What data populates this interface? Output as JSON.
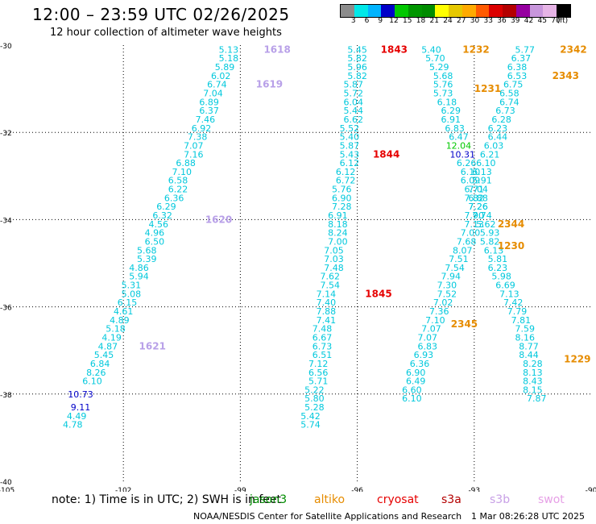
{
  "title": "12:00 – 23:59 UTC 02/26/2025",
  "subtitle": "12 hour collection of altimeter wave heights",
  "scale": {
    "colors": [
      "#8c8c8c",
      "#00e8e8",
      "#00b4ff",
      "#0000c8",
      "#00c800",
      "#009600",
      "#008c00",
      "#ffff00",
      "#e6c800",
      "#ffaa00",
      "#ff5a00",
      "#dc0000",
      "#b40000",
      "#9600a0",
      "#c896dc",
      "#e6b4e6",
      "#000000"
    ],
    "labels": [
      "3",
      "6",
      "9",
      "12",
      "15",
      "18",
      "21",
      "24",
      "27",
      "30",
      "33",
      "36",
      "39",
      "42",
      "45",
      "70",
      "(ft)"
    ]
  },
  "axes": {
    "y_labels": [
      "-30",
      "-32",
      "-34",
      "-36",
      "-38",
      "-40"
    ],
    "x_labels": [
      "-105",
      "-102",
      "-99",
      "-96",
      "-93",
      "-90"
    ]
  },
  "chart_data": {
    "type": "scatter",
    "title": "12:00 – 23:59 UTC 02/26/2025",
    "subtitle": "12 hour collection of altimeter wave heights",
    "xlabel": "",
    "ylabel": "",
    "xlim": [
      -105,
      -90
    ],
    "ylim": [
      -40,
      -30
    ],
    "tracks": [
      {
        "name": "track-a",
        "color": "#00c8dc",
        "points": [
          [
            -99.3,
            -30.1,
            "5.13"
          ],
          [
            -99.3,
            -30.3,
            "5.18"
          ],
          [
            -99.4,
            -30.5,
            "5.89"
          ],
          [
            -99.5,
            -30.7,
            "6.02"
          ],
          [
            -99.6,
            -30.9,
            "6.74"
          ],
          [
            -99.7,
            -31.1,
            "7.04"
          ],
          [
            -99.8,
            -31.3,
            "6.89"
          ],
          [
            -99.8,
            -31.5,
            "6.37"
          ],
          [
            -99.9,
            -31.7,
            "7.46"
          ],
          [
            -100.0,
            -31.9,
            "6.92"
          ],
          [
            -100.1,
            -32.1,
            "7.38"
          ],
          [
            -100.2,
            -32.3,
            "7.07"
          ],
          [
            -100.2,
            -32.5,
            "7.16"
          ],
          [
            -100.4,
            -32.7,
            "6.88"
          ],
          [
            -100.5,
            -32.9,
            "7.10"
          ],
          [
            -100.6,
            -33.1,
            "6.58"
          ],
          [
            -100.6,
            -33.3,
            "6.22"
          ],
          [
            -100.7,
            -33.5,
            "6.36"
          ],
          [
            -100.9,
            -33.7,
            "6.29"
          ],
          [
            -101.0,
            -33.9,
            "6.32"
          ],
          [
            -101.1,
            -34.1,
            "4.56"
          ],
          [
            -101.2,
            -34.3,
            "4.96"
          ],
          [
            -101.2,
            -34.5,
            "6.50"
          ],
          [
            -101.4,
            -34.7,
            "5.68"
          ],
          [
            -101.4,
            -34.9,
            "5.39"
          ],
          [
            -101.6,
            -35.1,
            "4.86"
          ],
          [
            -101.6,
            -35.3,
            "5.94"
          ],
          [
            -101.8,
            -35.5,
            "5.31"
          ],
          [
            -101.8,
            -35.7,
            "5.08"
          ],
          [
            -101.9,
            -35.9,
            "6.15"
          ],
          [
            -102.0,
            -36.1,
            "4.61"
          ],
          [
            -102.1,
            -36.3,
            "4.89"
          ],
          [
            -102.2,
            -36.5,
            "5.18"
          ],
          [
            -102.3,
            -36.7,
            "4.19"
          ],
          [
            -102.4,
            -36.9,
            "4.87"
          ],
          [
            -102.5,
            -37.1,
            "5.45"
          ],
          [
            -102.6,
            -37.3,
            "6.84"
          ],
          [
            -102.7,
            -37.5,
            "8.26"
          ],
          [
            -102.8,
            -37.7,
            "6.10"
          ],
          [
            -103.1,
            -38.0,
            "10.73"
          ],
          [
            -103.1,
            -38.3,
            "9.11"
          ],
          [
            -103.2,
            -38.5,
            "4.49"
          ],
          [
            -103.3,
            -38.7,
            "4.78"
          ]
        ]
      },
      {
        "name": "track-b",
        "color": "#00c8dc",
        "points": [
          [
            -96.0,
            -30.1,
            "5.45"
          ],
          [
            -96.0,
            -30.3,
            "5.82"
          ],
          [
            -96.0,
            -30.5,
            "5.96"
          ],
          [
            -96.0,
            -30.7,
            "5.82"
          ],
          [
            -96.1,
            -30.9,
            "5.87"
          ],
          [
            -96.1,
            -31.1,
            "5.72"
          ],
          [
            -96.1,
            -31.3,
            "6.04"
          ],
          [
            -96.1,
            -31.5,
            "5.44"
          ],
          [
            -96.1,
            -31.7,
            "6.62"
          ],
          [
            -96.2,
            -31.9,
            "5.52"
          ],
          [
            -96.2,
            -32.1,
            "5.40"
          ],
          [
            -96.2,
            -32.3,
            "5.87"
          ],
          [
            -96.2,
            -32.5,
            "5.43"
          ],
          [
            -96.2,
            -32.7,
            "6.12"
          ],
          [
            -96.3,
            -32.9,
            "6.12"
          ],
          [
            -96.3,
            -33.1,
            "6.72"
          ],
          [
            -96.4,
            -33.3,
            "5.76"
          ],
          [
            -96.4,
            -33.5,
            "6.90"
          ],
          [
            -96.4,
            -33.7,
            "7.28"
          ],
          [
            -96.5,
            -33.9,
            "6.91"
          ],
          [
            -96.5,
            -34.1,
            "8.18"
          ],
          [
            -96.5,
            -34.3,
            "8.24"
          ],
          [
            -96.5,
            -34.5,
            "7.00"
          ],
          [
            -96.6,
            -34.7,
            "7.05"
          ],
          [
            -96.6,
            -34.9,
            "7.03"
          ],
          [
            -96.6,
            -35.1,
            "7.48"
          ],
          [
            -96.7,
            -35.3,
            "7.62"
          ],
          [
            -96.7,
            -35.5,
            "7.54"
          ],
          [
            -96.8,
            -35.7,
            "7.14"
          ],
          [
            -96.8,
            -35.9,
            "7.40"
          ],
          [
            -96.8,
            -36.1,
            "7.88"
          ],
          [
            -96.8,
            -36.3,
            "7.41"
          ],
          [
            -96.9,
            -36.5,
            "7.48"
          ],
          [
            -96.9,
            -36.7,
            "6.67"
          ],
          [
            -96.9,
            -36.9,
            "6.73"
          ],
          [
            -96.9,
            -37.1,
            "6.51"
          ],
          [
            -97.0,
            -37.3,
            "7.12"
          ],
          [
            -97.0,
            -37.5,
            "6.56"
          ],
          [
            -97.0,
            -37.7,
            "5.71"
          ],
          [
            -97.1,
            -37.9,
            "5.22"
          ],
          [
            -97.1,
            -38.1,
            "5.80"
          ],
          [
            -97.1,
            -38.3,
            "5.28"
          ],
          [
            -97.2,
            -38.5,
            "5.42"
          ],
          [
            -97.2,
            -38.7,
            "5.74"
          ]
        ]
      },
      {
        "name": "track-c",
        "color": "#00c8dc",
        "points": [
          [
            -94.1,
            -30.1,
            "5.40"
          ],
          [
            -94.0,
            -30.3,
            "5.70"
          ],
          [
            -93.9,
            -30.5,
            "5.29"
          ],
          [
            -93.8,
            -30.7,
            "5.68"
          ],
          [
            -93.8,
            -30.9,
            "5.76"
          ],
          [
            -93.8,
            -31.1,
            "5.73"
          ],
          [
            -93.7,
            -31.3,
            "6.18"
          ],
          [
            -93.6,
            -31.5,
            "6.29"
          ],
          [
            -93.6,
            -31.7,
            "6.91"
          ],
          [
            -93.5,
            -31.9,
            "6.83"
          ],
          [
            -93.4,
            -32.1,
            "6.47"
          ],
          [
            -93.4,
            -32.3,
            "12.04"
          ],
          [
            -93.3,
            -32.5,
            "10.31"
          ],
          [
            -93.2,
            -32.7,
            "6.26"
          ],
          [
            -93.1,
            -32.9,
            "6.10"
          ],
          [
            -93.1,
            -33.1,
            "6.09"
          ],
          [
            -93.0,
            -33.3,
            "6.71"
          ],
          [
            -92.9,
            -33.5,
            "6.88"
          ],
          [
            -92.9,
            -33.7,
            "7.26"
          ],
          [
            -93.0,
            -33.9,
            "7.90"
          ],
          [
            -93.0,
            -34.1,
            "7.13"
          ],
          [
            -93.1,
            -34.3,
            "7.00"
          ],
          [
            -93.2,
            -34.5,
            "7.68"
          ],
          [
            -93.3,
            -34.7,
            "8.07"
          ],
          [
            -93.4,
            -34.9,
            "7.51"
          ],
          [
            -93.5,
            -35.1,
            "7.54"
          ],
          [
            -93.6,
            -35.3,
            "7.94"
          ],
          [
            -93.7,
            -35.5,
            "7.30"
          ],
          [
            -93.7,
            -35.7,
            "7.52"
          ],
          [
            -93.8,
            -35.9,
            "7.02"
          ],
          [
            -93.9,
            -36.1,
            "7.36"
          ],
          [
            -94.0,
            -36.3,
            "7.10"
          ],
          [
            -94.1,
            -36.5,
            "7.07"
          ],
          [
            -94.2,
            -36.7,
            "7.07"
          ],
          [
            -94.2,
            -36.9,
            "6.83"
          ],
          [
            -94.3,
            -37.1,
            "6.93"
          ],
          [
            -94.4,
            -37.3,
            "6.36"
          ],
          [
            -94.5,
            -37.5,
            "6.90"
          ],
          [
            -94.5,
            -37.7,
            "6.49"
          ],
          [
            -94.6,
            -37.9,
            "6.60"
          ],
          [
            -94.6,
            -38.1,
            "6.10"
          ]
        ]
      },
      {
        "name": "track-d",
        "color": "#00c8dc",
        "points": [
          [
            -91.7,
            -30.1,
            "5.77"
          ],
          [
            -91.8,
            -30.3,
            "6.37"
          ],
          [
            -91.9,
            -30.5,
            "6.38"
          ],
          [
            -91.9,
            -30.7,
            "6.53"
          ],
          [
            -92.0,
            -30.9,
            "6.75"
          ],
          [
            -92.1,
            -31.1,
            "6.58"
          ],
          [
            -92.1,
            -31.3,
            "6.74"
          ],
          [
            -92.2,
            -31.5,
            "6.73"
          ],
          [
            -92.3,
            -31.7,
            "6.28"
          ],
          [
            -92.4,
            -31.9,
            "6.23"
          ],
          [
            -92.4,
            -32.1,
            "6.44"
          ],
          [
            -92.5,
            -32.3,
            "6.03"
          ],
          [
            -92.6,
            -32.5,
            "6.21"
          ],
          [
            -92.7,
            -32.7,
            "6.10"
          ],
          [
            -92.8,
            -32.9,
            "6.13"
          ],
          [
            -92.8,
            -33.1,
            "5.91"
          ],
          [
            -92.9,
            -33.3,
            "7.04"
          ],
          [
            -93.0,
            -33.5,
            "7.82"
          ],
          [
            -92.9,
            -33.7,
            "7.26"
          ],
          [
            -92.8,
            -33.9,
            "7.74"
          ],
          [
            -92.7,
            -34.1,
            "5.62"
          ],
          [
            -92.6,
            -34.3,
            "5.93"
          ],
          [
            -92.6,
            -34.5,
            "5.82"
          ],
          [
            -92.5,
            -34.7,
            "6.13"
          ],
          [
            -92.4,
            -34.9,
            "5.81"
          ],
          [
            -92.4,
            -35.1,
            "6.23"
          ],
          [
            -92.3,
            -35.3,
            "5.98"
          ],
          [
            -92.2,
            -35.5,
            "6.69"
          ],
          [
            -92.1,
            -35.7,
            "7.13"
          ],
          [
            -92.0,
            -35.9,
            "7.42"
          ],
          [
            -91.9,
            -36.1,
            "7.79"
          ],
          [
            -91.8,
            -36.3,
            "7.81"
          ],
          [
            -91.7,
            -36.5,
            "7.59"
          ],
          [
            -91.7,
            -36.7,
            "8.16"
          ],
          [
            -91.6,
            -36.9,
            "8.77"
          ],
          [
            -91.6,
            -37.1,
            "8.44"
          ],
          [
            -91.5,
            -37.3,
            "8.28"
          ],
          [
            -91.5,
            -37.5,
            "8.13"
          ],
          [
            -91.5,
            -37.7,
            "8.43"
          ],
          [
            -91.5,
            -37.9,
            "8.15"
          ],
          [
            -91.4,
            -38.1,
            "7.87"
          ]
        ]
      }
    ],
    "time_labels": [
      {
        "text": "1618",
        "lon": -98.4,
        "lat": -30.1,
        "color": "#b8a0e8"
      },
      {
        "text": "1619",
        "lon": -98.6,
        "lat": -30.9,
        "color": "#b8a0e8"
      },
      {
        "text": "1620",
        "lon": -99.9,
        "lat": -34.0,
        "color": "#b8a0e8"
      },
      {
        "text": "1621",
        "lon": -101.6,
        "lat": -36.9,
        "color": "#b8a0e8"
      },
      {
        "text": "1843",
        "lon": -95.4,
        "lat": -30.1,
        "color": "#e60000"
      },
      {
        "text": "1844",
        "lon": -95.6,
        "lat": -32.5,
        "color": "#e60000"
      },
      {
        "text": "1845",
        "lon": -95.8,
        "lat": -35.7,
        "color": "#e60000"
      },
      {
        "text": "1232",
        "lon": -93.3,
        "lat": -30.1,
        "color": "#e68c00"
      },
      {
        "text": "1231",
        "lon": -93.0,
        "lat": -31.0,
        "color": "#e68c00"
      },
      {
        "text": "2344",
        "lon": -92.4,
        "lat": -34.1,
        "color": "#e68c00"
      },
      {
        "text": "1230",
        "lon": -92.4,
        "lat": -34.6,
        "color": "#e68c00"
      },
      {
        "text": "2345",
        "lon": -93.6,
        "lat": -36.4,
        "color": "#e68c00"
      },
      {
        "text": "2342",
        "lon": -90.8,
        "lat": -30.1,
        "color": "#e68c00"
      },
      {
        "text": "2343",
        "lon": -91.0,
        "lat": -30.7,
        "color": "#e68c00"
      },
      {
        "text": "1229",
        "lon": -90.7,
        "lat": -37.2,
        "color": "#e68c00"
      }
    ]
  },
  "footer": {
    "note": "note:  1) Time is in UTC;  2) SWH is in feet",
    "credit": "NOAA/NESDIS Center for Satellite Applications and Research",
    "timestamp": "1 Mar 08:26:28 UTC 2025",
    "satellites": [
      {
        "name": "jason3",
        "color": "#008c00"
      },
      {
        "name": "altiko",
        "color": "#e68c00"
      },
      {
        "name": "cryosat",
        "color": "#e60000"
      },
      {
        "name": "s3a",
        "color": "#b40000"
      },
      {
        "name": "s3b",
        "color": "#c8a0e6"
      },
      {
        "name": "swot",
        "color": "#e6a0e6"
      }
    ]
  }
}
